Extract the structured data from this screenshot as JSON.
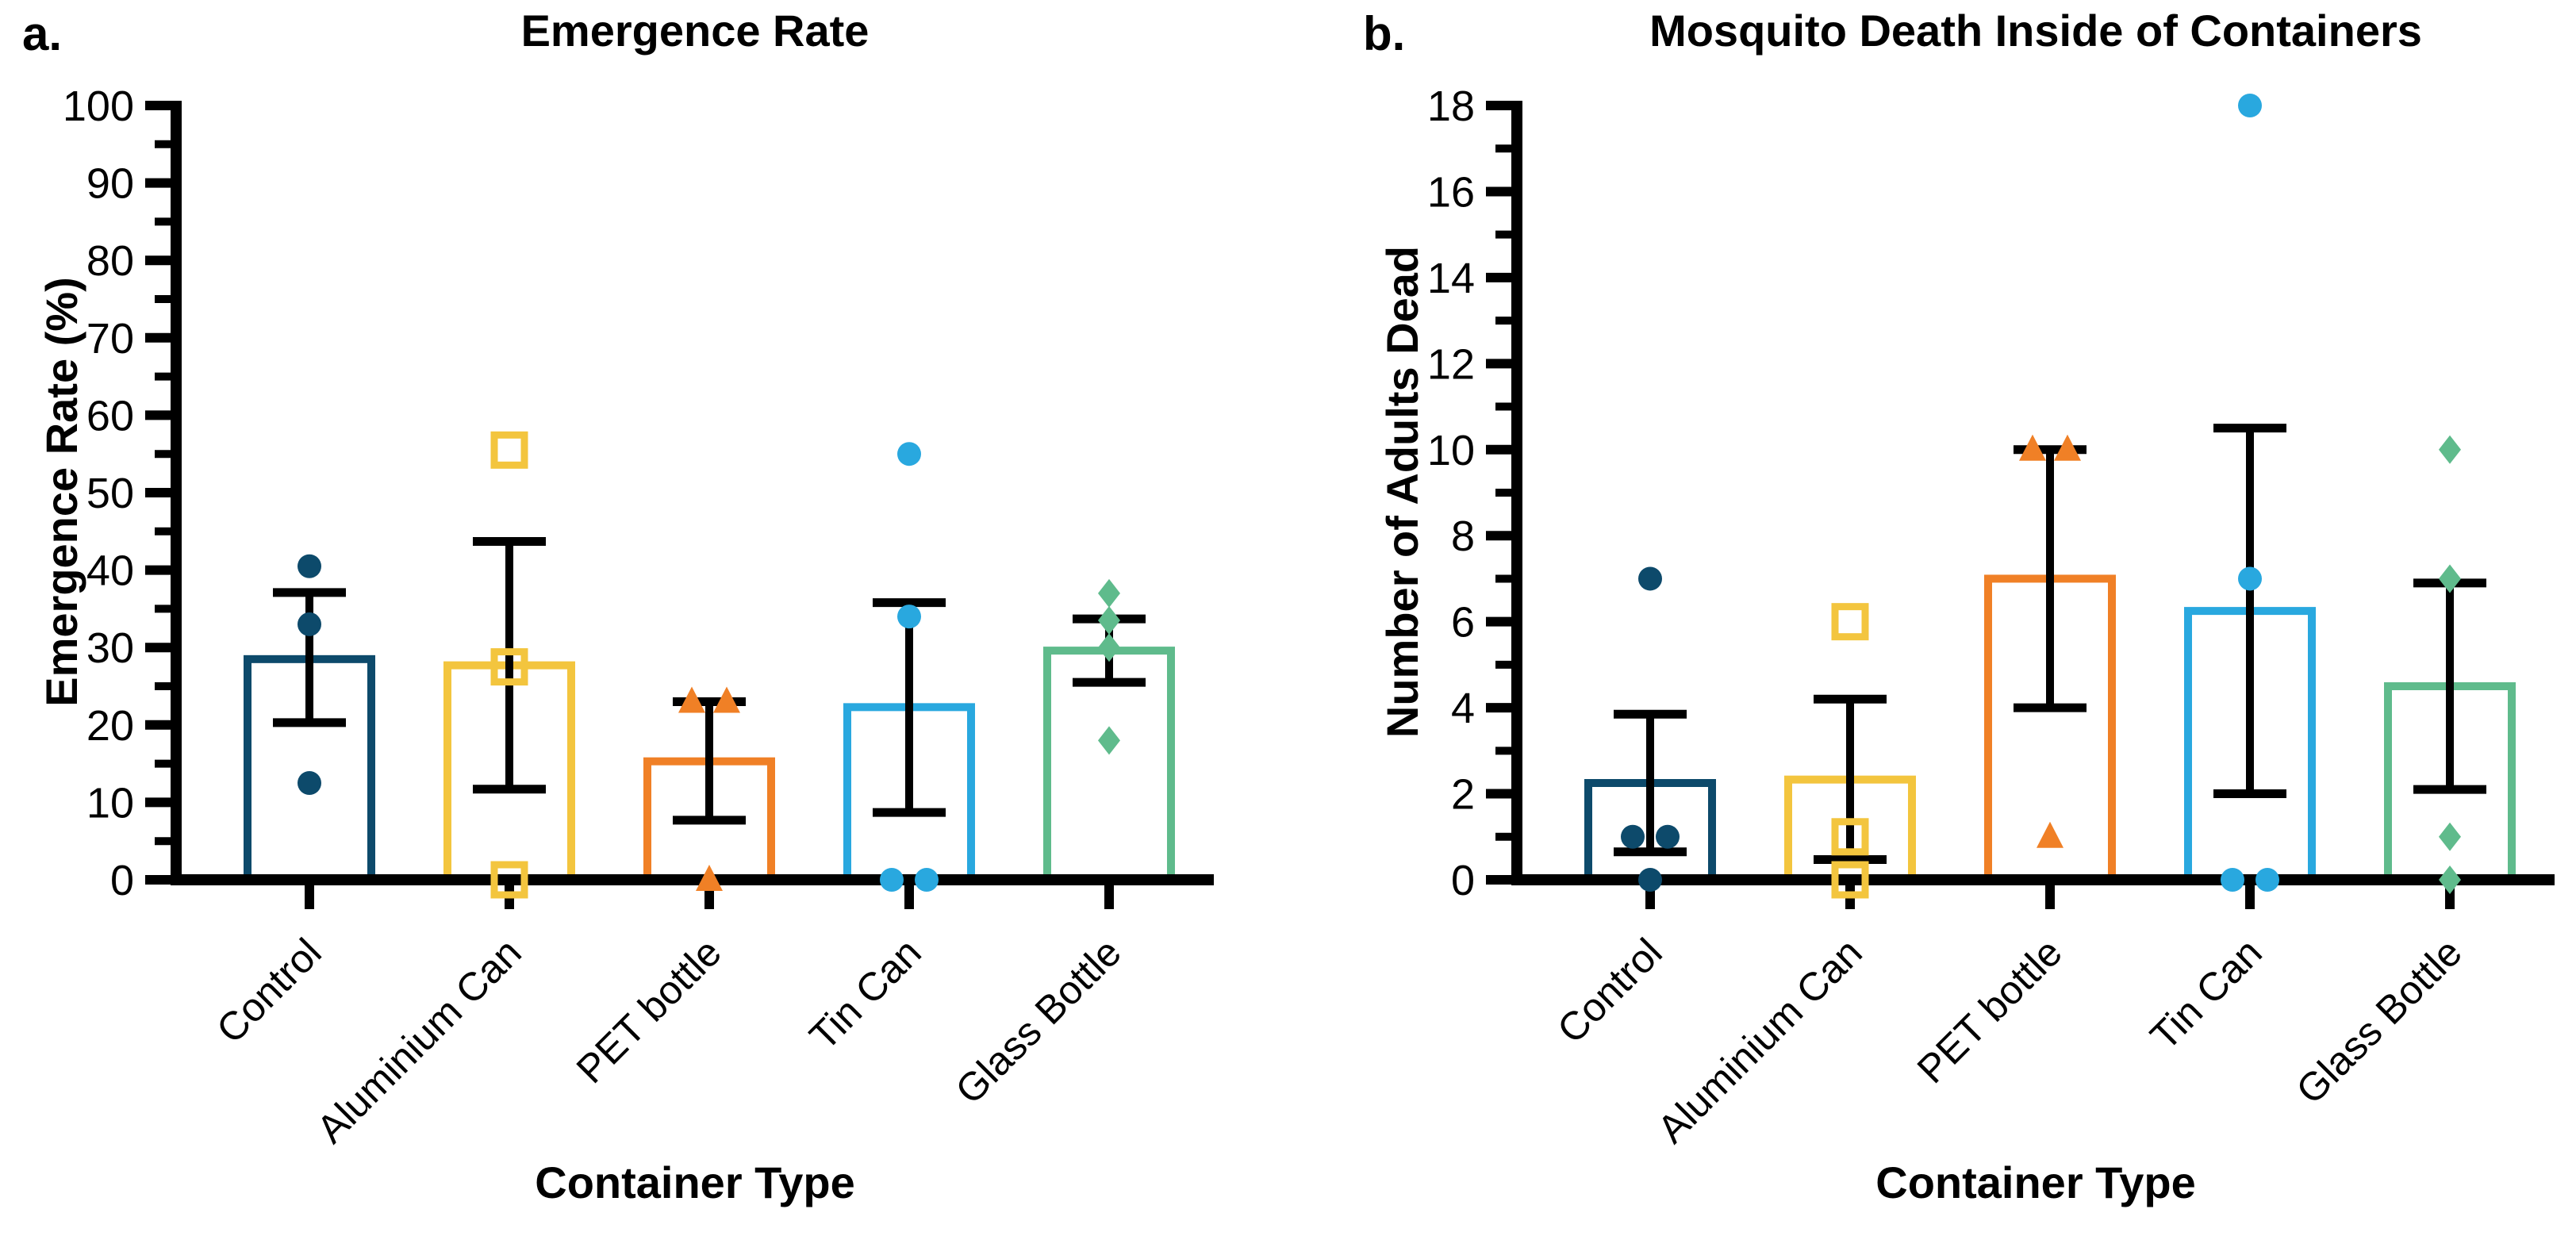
{
  "chart_data": [
    {
      "type": "bar",
      "panel_label": "a.",
      "title": "Emergence Rate",
      "xlabel": "Container Type",
      "ylabel": "Emergence Rate (%)",
      "y_axis": {
        "min": 0,
        "max": 100,
        "major": 10,
        "minor": 5,
        "tick_labels": [
          "0",
          "10",
          "20",
          "30",
          "40",
          "50",
          "60",
          "70",
          "80",
          "90",
          "100"
        ]
      },
      "error_bar_style": "mean_with_sem",
      "categories": [
        {
          "name": "Control",
          "color": "#0D4A6B",
          "marker": "circle",
          "marker_open": false,
          "mean": 28.5,
          "err_low": 20.3,
          "err_high": 37.1,
          "points": [
            40.5,
            33,
            12.5
          ]
        },
        {
          "name": "Aluminium Can",
          "color": "#F3C53E",
          "marker": "square",
          "marker_open": true,
          "mean": 27.7,
          "err_low": 11.7,
          "err_high": 43.7,
          "points": [
            55.5,
            27.5,
            0
          ]
        },
        {
          "name": "PET bottle",
          "color": "#F08026",
          "marker": "triangle",
          "marker_open": false,
          "mean": 15.3,
          "err_low": 7.7,
          "err_high": 23.0,
          "points": [
            23,
            23,
            0
          ]
        },
        {
          "name": "Tin Can",
          "color": "#29A8DF",
          "marker": "circle",
          "marker_open": false,
          "mean": 22.3,
          "err_low": 8.7,
          "err_high": 35.8,
          "points": [
            55,
            34,
            0,
            0
          ]
        },
        {
          "name": "Glass Bottle",
          "color": "#5FBB8C",
          "marker": "diamond",
          "marker_open": false,
          "mean": 29.6,
          "err_low": 25.5,
          "err_high": 33.7,
          "points": [
            37,
            33.5,
            30,
            18
          ]
        }
      ]
    },
    {
      "type": "bar",
      "panel_label": "b.",
      "title": "Mosquito Death Inside of Containers",
      "xlabel": "Container Type",
      "ylabel": "Number of Adults Dead",
      "y_axis": {
        "min": 0,
        "max": 18,
        "major": 2,
        "minor": 1,
        "tick_labels": [
          "0",
          "2",
          "4",
          "6",
          "8",
          "10",
          "12",
          "14",
          "16",
          "18"
        ]
      },
      "error_bar_style": "mean_with_sem",
      "categories": [
        {
          "name": "Control",
          "color": "#0D4A6B",
          "marker": "circle",
          "marker_open": false,
          "mean": 2.25,
          "err_low": 0.65,
          "err_high": 3.85,
          "points": [
            7,
            1,
            1,
            0
          ]
        },
        {
          "name": "Aluminium Can",
          "color": "#F3C53E",
          "marker": "square",
          "marker_open": true,
          "mean": 2.33,
          "err_low": 0.47,
          "err_high": 4.2,
          "points": [
            6,
            1,
            0
          ]
        },
        {
          "name": "PET bottle",
          "color": "#F08026",
          "marker": "triangle",
          "marker_open": false,
          "mean": 7.0,
          "err_low": 4.0,
          "err_high": 10.0,
          "points": [
            10,
            10,
            1
          ]
        },
        {
          "name": "Tin Can",
          "color": "#29A8DF",
          "marker": "circle",
          "marker_open": false,
          "mean": 6.25,
          "err_low": 2.0,
          "err_high": 10.5,
          "points": [
            18,
            7,
            0,
            0
          ]
        },
        {
          "name": "Glass Bottle",
          "color": "#5FBB8C",
          "marker": "diamond",
          "marker_open": false,
          "mean": 4.5,
          "err_low": 2.1,
          "err_high": 6.9,
          "points": [
            10,
            7,
            1,
            0
          ]
        }
      ]
    }
  ],
  "style": {
    "axis_color": "#000000",
    "error_bar_color": "#000000",
    "bar_fill": "#ffffff",
    "background": "#ffffff"
  }
}
